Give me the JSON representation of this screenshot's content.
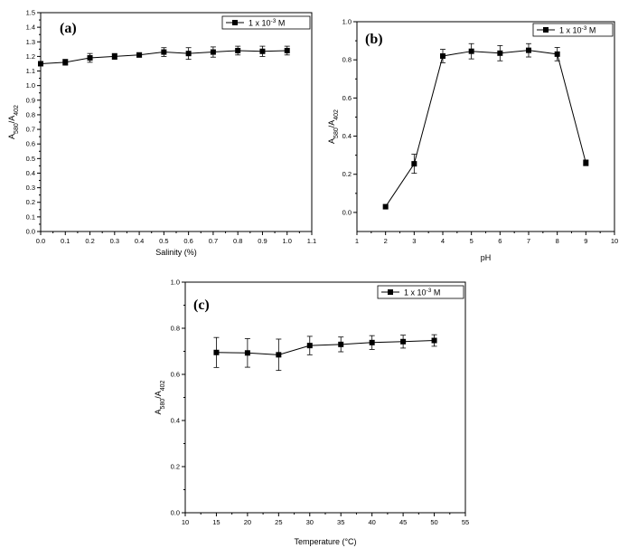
{
  "chart_data": [
    {
      "type": "line",
      "panel_label": "(a)",
      "xlabel": "Salinity (%)",
      "ylabel_main": "A",
      "ylabel_sub1": "580",
      "ylabel_mid": "/A",
      "ylabel_sub2": "402",
      "xlim": [
        0.0,
        1.1
      ],
      "ylim": [
        0.0,
        1.5
      ],
      "x_ticks": [
        "0.0",
        "0.1",
        "0.2",
        "0.3",
        "0.4",
        "0.5",
        "0.6",
        "0.7",
        "0.8",
        "0.9",
        "1.0",
        "1.1"
      ],
      "y_ticks": [
        "0.0",
        "0.1",
        "0.2",
        "0.3",
        "0.4",
        "0.5",
        "0.6",
        "0.7",
        "0.8",
        "0.9",
        "1.0",
        "1.1",
        "1.2",
        "1.3",
        "1.4",
        "1.5"
      ],
      "legend": {
        "prefix": "1 x 10",
        "exp": "-3",
        "suffix": " M",
        "placement": "top-right"
      },
      "series": [
        {
          "x": [
            0.0,
            0.1,
            0.2,
            0.3,
            0.4,
            0.5,
            0.6,
            0.7,
            0.8,
            0.9,
            1.0
          ],
          "y": [
            1.15,
            1.16,
            1.19,
            1.2,
            1.21,
            1.23,
            1.22,
            1.23,
            1.24,
            1.235,
            1.24
          ],
          "err": [
            0.0,
            0.02,
            0.03,
            0.02,
            0.015,
            0.03,
            0.04,
            0.035,
            0.03,
            0.035,
            0.03
          ]
        }
      ]
    },
    {
      "type": "line",
      "panel_label": "(b)",
      "xlabel": "pH",
      "ylabel_main": "A",
      "ylabel_sub1": "580",
      "ylabel_mid": "/A",
      "ylabel_sub2": "402",
      "xlim": [
        1,
        10
      ],
      "ylim": [
        -0.1,
        1.0
      ],
      "x_ticks": [
        "1",
        "2",
        "3",
        "4",
        "5",
        "6",
        "7",
        "8",
        "9",
        "10"
      ],
      "y_ticks": [
        "0.0",
        "0.2",
        "0.4",
        "0.6",
        "0.8",
        "1.0"
      ],
      "legend": {
        "prefix": "1 x 10",
        "exp": "-3",
        "suffix": " M",
        "placement": "top-right"
      },
      "series": [
        {
          "x": [
            2,
            3,
            4,
            5,
            6,
            7,
            8,
            9
          ],
          "y": [
            0.03,
            0.255,
            0.82,
            0.845,
            0.835,
            0.85,
            0.83,
            0.26
          ],
          "err": [
            0.0,
            0.05,
            0.035,
            0.04,
            0.04,
            0.035,
            0.035,
            0.015
          ]
        }
      ]
    },
    {
      "type": "line",
      "panel_label": "(c)",
      "xlabel": "Temperature (°C)",
      "ylabel_main": "A",
      "ylabel_sub1": "580",
      "ylabel_mid": "/A",
      "ylabel_sub2": "402",
      "xlim": [
        10,
        55
      ],
      "ylim": [
        0.0,
        1.0
      ],
      "x_ticks": [
        "10",
        "15",
        "20",
        "25",
        "30",
        "35",
        "40",
        "45",
        "50",
        "55"
      ],
      "y_ticks": [
        "0.0",
        "0.2",
        "0.4",
        "0.6",
        "0.8",
        "1.0"
      ],
      "legend": {
        "prefix": "1 x 10",
        "exp": "-3",
        "suffix": " M",
        "placement": "top-right"
      },
      "series": [
        {
          "x": [
            15,
            20,
            25,
            30,
            35,
            40,
            45,
            50
          ],
          "y": [
            0.695,
            0.693,
            0.685,
            0.725,
            0.73,
            0.738,
            0.742,
            0.747
          ],
          "err": [
            0.065,
            0.062,
            0.068,
            0.04,
            0.032,
            0.03,
            0.028,
            0.025
          ]
        }
      ]
    }
  ]
}
